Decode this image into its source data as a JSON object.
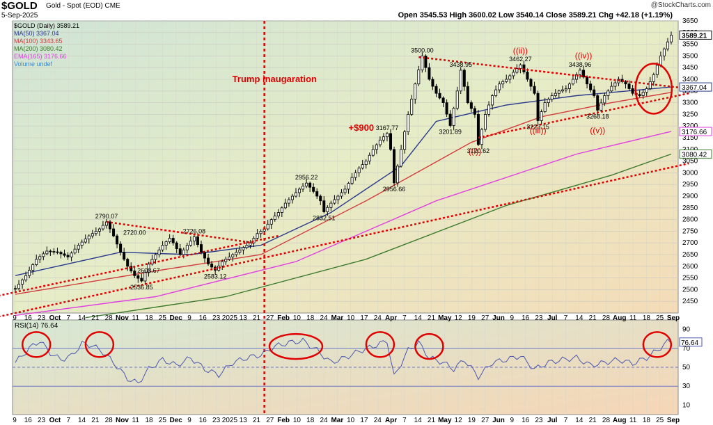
{
  "header": {
    "ticker": "$GOLD",
    "subtitle": "Gold - Spot (EOD) CME",
    "date": "5-Sep-2025",
    "ohlc": "Open 3545.53  High 3600.02  Low 3540.14  Close 3589.21  Chg +42.18 (+1.19%)",
    "brand": "@StockCharts.com"
  },
  "colors": {
    "ma50": "#2a3a8c",
    "ma100": "#d23c3c",
    "ma200": "#3c7a2c",
    "ema165": "#e040e0",
    "candle": "#000000",
    "annotation": "#e00000",
    "rsi": "#4a56b0"
  },
  "chart_data": [
    {
      "type": "candlestick",
      "title": "$GOLD Gold - Spot (EOD) CME",
      "ylim": [
        2400,
        3650
      ],
      "y_ticks": [
        2450,
        2500,
        2550,
        2600,
        2650,
        2700,
        2750,
        2800,
        2850,
        2900,
        2950,
        3000,
        3050,
        3100,
        3150,
        3200,
        3250,
        3300,
        3350,
        3400,
        3450,
        3500,
        3550,
        3600,
        3650
      ],
      "x_tick_labels": [
        "9",
        "16",
        "23",
        "Oct",
        "7",
        "14",
        "21",
        "28",
        "Nov",
        "11",
        "18",
        "25",
        "Dec",
        "9",
        "16",
        "23",
        "2025",
        "13",
        "21",
        "27",
        "Feb",
        "10",
        "18",
        "24",
        "Mar",
        "10",
        "17",
        "24",
        "Apr",
        "7",
        "14",
        "21",
        "May",
        "12",
        "19",
        "27",
        "Jun",
        "9",
        "16",
        "23",
        "Jul",
        "7",
        "14",
        "21",
        "28",
        "Aug",
        "11",
        "18",
        "25",
        "Sep"
      ],
      "price_path": [
        [
          0,
          2505
        ],
        [
          3,
          2560
        ],
        [
          6,
          2630
        ],
        [
          9,
          2665
        ],
        [
          12,
          2660
        ],
        [
          15,
          2640
        ],
        [
          18,
          2690
        ],
        [
          21,
          2730
        ],
        [
          24,
          2760
        ],
        [
          26,
          2790
        ],
        [
          28,
          2730
        ],
        [
          30,
          2660
        ],
        [
          32,
          2600
        ],
        [
          34,
          2560
        ],
        [
          36,
          2537
        ],
        [
          38,
          2609
        ],
        [
          40,
          2650
        ],
        [
          42,
          2690
        ],
        [
          44,
          2720
        ],
        [
          45,
          2700
        ],
        [
          47,
          2650
        ],
        [
          49,
          2690
        ],
        [
          51,
          2726
        ],
        [
          53,
          2660
        ],
        [
          55,
          2610
        ],
        [
          57,
          2583
        ],
        [
          59,
          2620
        ],
        [
          61,
          2640
        ],
        [
          63,
          2660
        ],
        [
          65,
          2680
        ],
        [
          67,
          2700
        ],
        [
          69,
          2740
        ],
        [
          71,
          2760
        ],
        [
          73,
          2800
        ],
        [
          75,
          2830
        ],
        [
          77,
          2870
        ],
        [
          79,
          2900
        ],
        [
          81,
          2930
        ],
        [
          83,
          2956
        ],
        [
          85,
          2920
        ],
        [
          87,
          2880
        ],
        [
          88,
          2833
        ],
        [
          90,
          2870
        ],
        [
          92,
          2900
        ],
        [
          94,
          2930
        ],
        [
          96,
          2980
        ],
        [
          98,
          3020
        ],
        [
          100,
          3050
        ],
        [
          102,
          3100
        ],
        [
          104,
          3140
        ],
        [
          106,
          3168
        ],
        [
          107,
          3100
        ],
        [
          108,
          2957
        ],
        [
          110,
          3100
        ],
        [
          112,
          3250
        ],
        [
          114,
          3380
        ],
        [
          116,
          3500
        ],
        [
          118,
          3400
        ],
        [
          120,
          3340
        ],
        [
          122,
          3300
        ],
        [
          124,
          3202
        ],
        [
          126,
          3350
        ],
        [
          127,
          3439
        ],
        [
          129,
          3300
        ],
        [
          131,
          3250
        ],
        [
          132,
          3121
        ],
        [
          134,
          3250
        ],
        [
          136,
          3330
        ],
        [
          138,
          3380
        ],
        [
          140,
          3400
        ],
        [
          142,
          3430
        ],
        [
          144,
          3462
        ],
        [
          146,
          3400
        ],
        [
          148,
          3340
        ],
        [
          149,
          3223
        ],
        [
          151,
          3300
        ],
        [
          153,
          3330
        ],
        [
          155,
          3350
        ],
        [
          157,
          3360
        ],
        [
          159,
          3400
        ],
        [
          161,
          3439
        ],
        [
          163,
          3380
        ],
        [
          165,
          3330
        ],
        [
          166,
          3268
        ],
        [
          168,
          3330
        ],
        [
          170,
          3370
        ],
        [
          172,
          3400
        ],
        [
          174,
          3380
        ],
        [
          176,
          3340
        ],
        [
          178,
          3330
        ],
        [
          180,
          3360
        ],
        [
          182,
          3420
        ],
        [
          184,
          3500
        ],
        [
          186,
          3560
        ],
        [
          187,
          3589
        ]
      ],
      "price_labels": [
        {
          "text": "2790.07",
          "price": 2790.07
        },
        {
          "text": "2720.00",
          "price": 2720.0
        },
        {
          "text": "2726.08",
          "price": 2726.08
        },
        {
          "text": "2608.67",
          "price": 2608.67
        },
        {
          "text": "2583.12",
          "price": 2583.12
        },
        {
          "text": "2536.85",
          "price": 2536.85
        },
        {
          "text": "2956.22",
          "price": 2956.22
        },
        {
          "text": "2832.51",
          "price": 2832.51
        },
        {
          "text": "3167.77",
          "price": 3167.77
        },
        {
          "text": "2956.66",
          "price": 2956.66
        },
        {
          "text": "3500.00",
          "price": 3500.0
        },
        {
          "text": "3438.95",
          "price": 3438.95
        },
        {
          "text": "3201.89",
          "price": 3201.89
        },
        {
          "text": "3120.62",
          "price": 3120.62
        },
        {
          "text": "3462.27",
          "price": 3462.27
        },
        {
          "text": "3223.15",
          "price": 3223.15
        },
        {
          "text": "3438.96",
          "price": 3438.96
        },
        {
          "text": "3268.18",
          "price": 3268.18
        }
      ],
      "annotations": [
        "Trump inaugaration",
        "+$900",
        "((i))",
        "((ii))",
        "((iii))",
        "((iv))",
        "((v))"
      ],
      "right_axis_labels": [
        "3589.21",
        "3367.04",
        "3176.66",
        "3080.42"
      ],
      "legend": [
        {
          "name": "$GOLD (Daily)",
          "value": "3589.21"
        },
        {
          "name": "MA(50)",
          "value": "3367.04"
        },
        {
          "name": "MA(100)",
          "value": "3343.65"
        },
        {
          "name": "MA(200)",
          "value": "3080.42"
        },
        {
          "name": "EMA(165)",
          "value": "3176.66"
        },
        {
          "name": "Volume undef",
          "value": ""
        }
      ],
      "moving_averages": {
        "ma50": [
          [
            0,
            2560
          ],
          [
            30,
            2660
          ],
          [
            50,
            2650
          ],
          [
            70,
            2690
          ],
          [
            90,
            2830
          ],
          [
            110,
            3030
          ],
          [
            120,
            3220
          ],
          [
            140,
            3290
          ],
          [
            160,
            3330
          ],
          [
            187,
            3367
          ]
        ],
        "ma100": [
          [
            0,
            2480
          ],
          [
            40,
            2580
          ],
          [
            70,
            2650
          ],
          [
            100,
            2880
          ],
          [
            130,
            3130
          ],
          [
            150,
            3240
          ],
          [
            170,
            3300
          ],
          [
            187,
            3344
          ]
        ],
        "ema165": [
          [
            0,
            2390
          ],
          [
            40,
            2470
          ],
          [
            80,
            2620
          ],
          [
            120,
            2880
          ],
          [
            160,
            3080
          ],
          [
            187,
            3177
          ]
        ],
        "ma200": [
          [
            20,
            2380
          ],
          [
            60,
            2470
          ],
          [
            100,
            2630
          ],
          [
            140,
            2860
          ],
          [
            170,
            2990
          ],
          [
            187,
            3080
          ]
        ]
      }
    },
    {
      "type": "line",
      "title": "RSI(14) 76.64",
      "ylim": [
        0,
        100
      ],
      "y_ticks": [
        10,
        30,
        50,
        70,
        90
      ],
      "reference_lines": [
        70,
        50,
        30
      ],
      "last_value": "76.64",
      "rsi_path": [
        [
          0,
          55
        ],
        [
          4,
          70
        ],
        [
          7,
          78
        ],
        [
          10,
          65
        ],
        [
          13,
          58
        ],
        [
          16,
          62
        ],
        [
          19,
          75
        ],
        [
          22,
          73
        ],
        [
          25,
          66
        ],
        [
          28,
          55
        ],
        [
          32,
          38
        ],
        [
          35,
          33
        ],
        [
          38,
          48
        ],
        [
          42,
          58
        ],
        [
          46,
          52
        ],
        [
          50,
          60
        ],
        [
          54,
          48
        ],
        [
          58,
          42
        ],
        [
          62,
          55
        ],
        [
          66,
          60
        ],
        [
          70,
          63
        ],
        [
          74,
          72
        ],
        [
          78,
          76
        ],
        [
          82,
          78
        ],
        [
          86,
          68
        ],
        [
          90,
          55
        ],
        [
          94,
          60
        ],
        [
          98,
          67
        ],
        [
          102,
          72
        ],
        [
          106,
          78
        ],
        [
          108,
          40
        ],
        [
          112,
          68
        ],
        [
          115,
          76
        ],
        [
          118,
          60
        ],
        [
          122,
          55
        ],
        [
          125,
          48
        ],
        [
          128,
          58
        ],
        [
          132,
          40
        ],
        [
          136,
          55
        ],
        [
          140,
          58
        ],
        [
          144,
          62
        ],
        [
          148,
          48
        ],
        [
          152,
          55
        ],
        [
          156,
          58
        ],
        [
          160,
          60
        ],
        [
          164,
          52
        ],
        [
          168,
          55
        ],
        [
          172,
          58
        ],
        [
          176,
          54
        ],
        [
          180,
          60
        ],
        [
          183,
          68
        ],
        [
          186,
          77
        ],
        [
          187,
          76.64
        ]
      ]
    }
  ]
}
